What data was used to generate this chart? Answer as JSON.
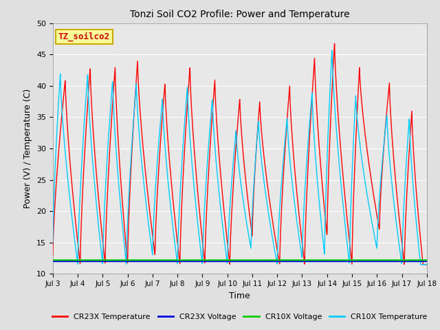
{
  "title": "Tonzi Soil CO2 Profile: Power and Temperature",
  "xlabel": "Time",
  "ylabel": "Power (V) / Temperature (C)",
  "ylim": [
    10,
    50
  ],
  "yticks": [
    10,
    15,
    20,
    25,
    30,
    35,
    40,
    45,
    50
  ],
  "xtick_labels": [
    "Jul 3",
    "Jul 4",
    "Jul 5",
    "Jul 6",
    "Jul 7",
    "Jul 8",
    "Jul 9",
    "Jul 10",
    "Jul 11",
    "Jul 12",
    "Jul 13",
    "Jul 14",
    "Jul 15",
    "Jul 16",
    "Jul 17",
    "Jul 18"
  ],
  "bg_color": "#e0e0e0",
  "plot_bg_color": "#e8e8e8",
  "grid_color": "#ffffff",
  "cr23x_temp_color": "#ff0000",
  "cr23x_volt_color": "#0000dd",
  "cr10x_volt_color": "#00cc00",
  "cr10x_temp_color": "#00ccff",
  "label_box_facecolor": "#ffff99",
  "label_box_edgecolor": "#ccaa00",
  "label_text": "TZ_soilco2",
  "label_text_color": "#cc0000",
  "legend_labels": [
    "CR23X Temperature",
    "CR23X Voltage",
    "CR10X Voltage",
    "CR10X Temperature"
  ],
  "legend_colors": [
    "#ff0000",
    "#0000dd",
    "#00cc00",
    "#00ccff"
  ],
  "cr23x_peaks_day": [
    3.5,
    4.5,
    5.5,
    6.4,
    7.5,
    8.5,
    9.5,
    10.5,
    11.3,
    12.5,
    13.5,
    14.3,
    15.3,
    16.5,
    17.4
  ],
  "cr23x_peaks_val": [
    41,
    43,
    43,
    44,
    40.5,
    43,
    41,
    38,
    37.5,
    40,
    44.5,
    47,
    43,
    40.5,
    36
  ],
  "cr23x_troughs_day": [
    3.0,
    4.1,
    5.1,
    6.0,
    7.1,
    8.1,
    9.1,
    10.1,
    11.0,
    12.1,
    13.1,
    14.0,
    15.0,
    16.1,
    17.1
  ],
  "cr23x_troughs_val": [
    13,
    11.5,
    11.5,
    11.5,
    13,
    11.5,
    11.5,
    11.5,
    16,
    11.5,
    11.5,
    16,
    11.5,
    17,
    11.5
  ],
  "cr10x_peaks_day": [
    3.3,
    4.4,
    5.4,
    6.35,
    7.4,
    8.4,
    9.4,
    10.35,
    11.25,
    12.4,
    13.4,
    14.2,
    15.15,
    16.4,
    17.3
  ],
  "cr10x_peaks_val": [
    42,
    42,
    41,
    40.5,
    38,
    40,
    38,
    33,
    34.5,
    35,
    39,
    46,
    38.5,
    35.5,
    35
  ],
  "cr10x_troughs_day": [
    3.0,
    4.0,
    5.0,
    5.95,
    7.0,
    8.0,
    9.0,
    10.0,
    10.95,
    12.0,
    13.0,
    13.9,
    14.9,
    16.0,
    17.0
  ],
  "cr10x_troughs_val": [
    15,
    11.5,
    11.5,
    11.5,
    13,
    11.5,
    11.5,
    11.5,
    14,
    11.5,
    12.5,
    13,
    11.5,
    14,
    11.5
  ],
  "volt_cr23x": 12.0,
  "volt_cr10x": 12.2
}
